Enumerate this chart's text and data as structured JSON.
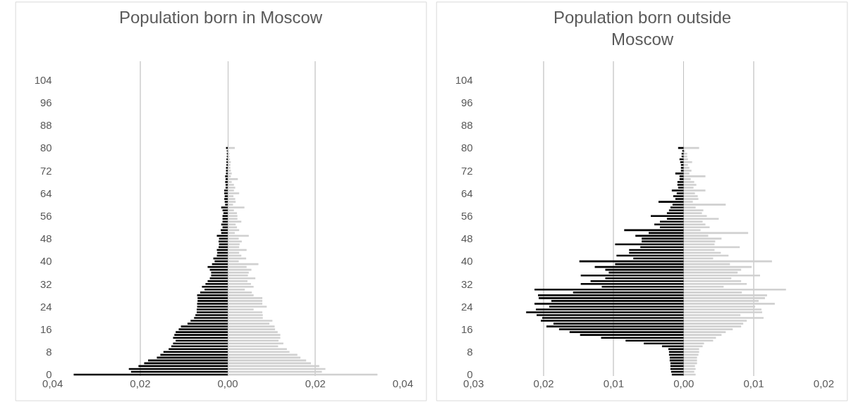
{
  "chart_data": [
    {
      "type": "bar",
      "orientation": "horizontal",
      "stacked": true,
      "title": "Population born in Moscow",
      "grid": "x",
      "xlim": [
        -0.04,
        0.04
      ],
      "xticks": [
        {
          "value": -0.04,
          "label": "0,04"
        },
        {
          "value": -0.02,
          "label": "0,02"
        },
        {
          "value": 0,
          "label": "0,00"
        },
        {
          "value": 0.02,
          "label": "0,02"
        },
        {
          "value": 0.04,
          "label": "0,04"
        }
      ],
      "categories": [
        null,
        null,
        null,
        null,
        null,
        null,
        "104",
        null,
        null,
        null,
        null,
        null,
        null,
        null,
        "96",
        null,
        null,
        null,
        null,
        null,
        null,
        null,
        "88",
        null,
        null,
        null,
        null,
        null,
        null,
        null,
        "80",
        null,
        null,
        null,
        null,
        null,
        null,
        null,
        "72",
        null,
        null,
        null,
        null,
        null,
        null,
        null,
        "64",
        null,
        null,
        null,
        null,
        null,
        null,
        null,
        "56",
        null,
        null,
        null,
        null,
        null,
        null,
        null,
        "48",
        null,
        null,
        null,
        null,
        null,
        null,
        null,
        "40",
        null,
        null,
        null,
        null,
        null,
        null,
        null,
        "32",
        null,
        null,
        null,
        null,
        null,
        null,
        null,
        "24",
        null,
        null,
        null,
        null,
        null,
        null,
        null,
        "16",
        null,
        null,
        null,
        null,
        null,
        null,
        null,
        "8",
        null,
        null,
        null,
        null,
        null,
        null,
        null,
        "0"
      ],
      "series": [
        {
          "color": "#000000",
          "values": [
            null,
            null,
            null,
            null,
            null,
            null,
            null,
            null,
            null,
            null,
            null,
            null,
            null,
            null,
            null,
            null,
            null,
            null,
            null,
            null,
            null,
            null,
            null,
            null,
            null,
            null,
            null,
            null,
            null,
            null,
            -0.0004,
            -0.0002,
            -0.0002,
            -0.0002,
            -0.0003,
            -0.0003,
            -0.0003,
            -0.0004,
            -0.0004,
            -0.0004,
            -0.0006,
            -0.0005,
            -0.0006,
            -0.0005,
            -0.0005,
            -0.0008,
            -0.0008,
            -0.0007,
            -0.0008,
            -0.0007,
            -0.0006,
            -0.0015,
            -0.0012,
            -0.001,
            -0.0012,
            -0.0012,
            -0.0012,
            -0.0015,
            -0.0012,
            -0.0016,
            -0.0015,
            -0.0025,
            -0.002,
            -0.0021,
            -0.002,
            -0.0021,
            -0.0025,
            -0.0024,
            -0.0025,
            -0.0033,
            -0.003,
            -0.0036,
            -0.0046,
            -0.0041,
            -0.0038,
            -0.0038,
            -0.0041,
            -0.0046,
            -0.0051,
            -0.0059,
            -0.0053,
            -0.0063,
            -0.007,
            -0.0069,
            -0.0069,
            -0.007,
            -0.007,
            -0.0071,
            -0.0071,
            -0.0074,
            -0.0077,
            -0.0085,
            -0.0092,
            -0.0107,
            -0.0112,
            -0.0119,
            -0.0122,
            -0.0125,
            -0.0119,
            -0.0125,
            -0.0129,
            -0.0135,
            -0.0147,
            -0.0154,
            -0.0162,
            -0.0182,
            -0.0191,
            -0.0204,
            -0.0226,
            -0.0221,
            -0.0352
          ]
        },
        {
          "color": "#d0d0d0",
          "values": [
            null,
            null,
            null,
            null,
            null,
            null,
            null,
            null,
            null,
            null,
            null,
            null,
            null,
            null,
            null,
            null,
            null,
            null,
            null,
            null,
            null,
            null,
            null,
            null,
            null,
            null,
            null,
            null,
            null,
            null,
            0.0016,
            0.0003,
            0.0004,
            0.0004,
            0.0005,
            0.0007,
            0.0006,
            0.0006,
            0.0007,
            0.0009,
            0.0007,
            0.0023,
            0.0009,
            0.0014,
            0.0017,
            0.0014,
            0.0026,
            0.0013,
            0.0017,
            0.0018,
            0.0012,
            0.0038,
            0.0014,
            0.0021,
            0.0022,
            0.0022,
            0.0031,
            0.0018,
            0.0021,
            0.0026,
            0.0016,
            0.0048,
            0.0025,
            0.0032,
            0.0027,
            0.0026,
            0.0043,
            0.0026,
            0.0031,
            0.0042,
            0.0025,
            0.007,
            0.0043,
            0.0054,
            0.0048,
            0.0046,
            0.0063,
            0.0045,
            0.0053,
            0.0059,
            0.0039,
            0.0055,
            0.0059,
            0.0079,
            0.0079,
            0.0079,
            0.0089,
            0.0059,
            0.0079,
            0.008,
            0.008,
            0.0102,
            0.0095,
            0.0107,
            0.0108,
            0.0114,
            0.012,
            0.012,
            0.0116,
            0.0127,
            0.0115,
            0.0135,
            0.0141,
            0.0159,
            0.0166,
            0.0179,
            0.019,
            0.0209,
            0.0223,
            0.0215,
            0.0342
          ]
        }
      ]
    },
    {
      "type": "bar",
      "orientation": "horizontal",
      "stacked": true,
      "title": "Population born outside Moscow",
      "grid": "x",
      "xlim": [
        -0.03,
        0.02
      ],
      "xticks": [
        {
          "value": -0.03,
          "label": "0,03"
        },
        {
          "value": -0.02,
          "label": "0,02"
        },
        {
          "value": -0.01,
          "label": "0,01"
        },
        {
          "value": 0,
          "label": "0,00"
        },
        {
          "value": 0.01,
          "label": "0,01"
        },
        {
          "value": 0.02,
          "label": "0,02"
        }
      ],
      "categories": [
        null,
        null,
        null,
        null,
        null,
        null,
        "104",
        null,
        null,
        null,
        null,
        null,
        null,
        null,
        "96",
        null,
        null,
        null,
        null,
        null,
        null,
        null,
        "88",
        null,
        null,
        null,
        null,
        null,
        null,
        null,
        "80",
        null,
        null,
        null,
        null,
        null,
        null,
        null,
        "72",
        null,
        null,
        null,
        null,
        null,
        null,
        null,
        "64",
        null,
        null,
        null,
        null,
        null,
        null,
        null,
        "56",
        null,
        null,
        null,
        null,
        null,
        null,
        null,
        "48",
        null,
        null,
        null,
        null,
        null,
        null,
        null,
        "40",
        null,
        null,
        null,
        null,
        null,
        null,
        null,
        "32",
        null,
        null,
        null,
        null,
        null,
        null,
        null,
        "24",
        null,
        null,
        null,
        null,
        null,
        null,
        null,
        "16",
        null,
        null,
        null,
        null,
        null,
        null,
        null,
        "8",
        null,
        null,
        null,
        null,
        null,
        null,
        null,
        "0"
      ],
      "series": [
        {
          "color": "#000000",
          "values": [
            null,
            null,
            null,
            null,
            null,
            null,
            null,
            null,
            null,
            null,
            null,
            null,
            null,
            null,
            null,
            null,
            null,
            null,
            null,
            null,
            null,
            null,
            null,
            null,
            null,
            null,
            null,
            null,
            null,
            null,
            -0.0008,
            -0.0002,
            -0.0003,
            -0.0003,
            -0.0006,
            -0.0005,
            -0.0004,
            -0.0004,
            -0.0004,
            -0.0012,
            -0.0006,
            -0.0006,
            -0.0009,
            -0.0009,
            -0.0008,
            -0.0017,
            -0.001,
            -0.0015,
            -0.0012,
            -0.0036,
            -0.0016,
            -0.0019,
            -0.0021,
            -0.0024,
            -0.0047,
            -0.0024,
            -0.0034,
            -0.0042,
            -0.0034,
            -0.0085,
            -0.005,
            -0.0069,
            -0.006,
            -0.006,
            -0.0098,
            -0.0062,
            -0.0078,
            -0.0078,
            -0.0096,
            -0.0072,
            -0.0149,
            -0.0098,
            -0.0127,
            -0.0112,
            -0.0107,
            -0.0147,
            -0.0112,
            -0.0133,
            -0.0147,
            -0.0117,
            -0.0213,
            -0.0158,
            -0.0208,
            -0.0207,
            -0.0189,
            -0.0213,
            -0.0192,
            -0.0211,
            -0.0225,
            -0.021,
            -0.0202,
            -0.0204,
            -0.0186,
            -0.0196,
            -0.0178,
            -0.0163,
            -0.0148,
            -0.0118,
            -0.0083,
            -0.0057,
            -0.0031,
            -0.0022,
            -0.0021,
            -0.0021,
            -0.002,
            -0.002,
            -0.0019,
            -0.0019,
            -0.0019,
            -0.0018,
            -0.0017
          ]
        },
        {
          "color": "#d0d0d0",
          "values": [
            null,
            null,
            null,
            null,
            null,
            null,
            null,
            null,
            null,
            null,
            null,
            null,
            null,
            null,
            null,
            null,
            null,
            null,
            null,
            null,
            null,
            null,
            null,
            null,
            null,
            null,
            null,
            null,
            null,
            null,
            0.0022,
            0.0002,
            0.0005,
            0.0005,
            0.0006,
            0.0012,
            0.0006,
            0.0008,
            0.0011,
            0.0008,
            0.0031,
            0.001,
            0.0015,
            0.0018,
            0.0014,
            0.0031,
            0.0016,
            0.002,
            0.0021,
            0.0013,
            0.006,
            0.0017,
            0.0028,
            0.0026,
            0.0033,
            0.005,
            0.0027,
            0.0031,
            0.0037,
            0.0024,
            0.0092,
            0.0035,
            0.0054,
            0.0045,
            0.0044,
            0.008,
            0.0044,
            0.0053,
            0.0064,
            0.0042,
            0.0126,
            0.0066,
            0.0097,
            0.0082,
            0.0077,
            0.0109,
            0.0068,
            0.0082,
            0.009,
            0.0057,
            0.0146,
            0.0083,
            0.0119,
            0.0116,
            0.0107,
            0.013,
            0.0102,
            0.0111,
            0.0112,
            0.0081,
            0.0114,
            0.009,
            0.0085,
            0.0082,
            0.007,
            0.006,
            0.0054,
            0.0046,
            0.0042,
            0.0029,
            0.0027,
            0.0022,
            0.0022,
            0.0021,
            0.0019,
            0.0019,
            0.0019,
            0.0016,
            0.0017,
            0.0015,
            0.0017
          ]
        }
      ]
    }
  ]
}
